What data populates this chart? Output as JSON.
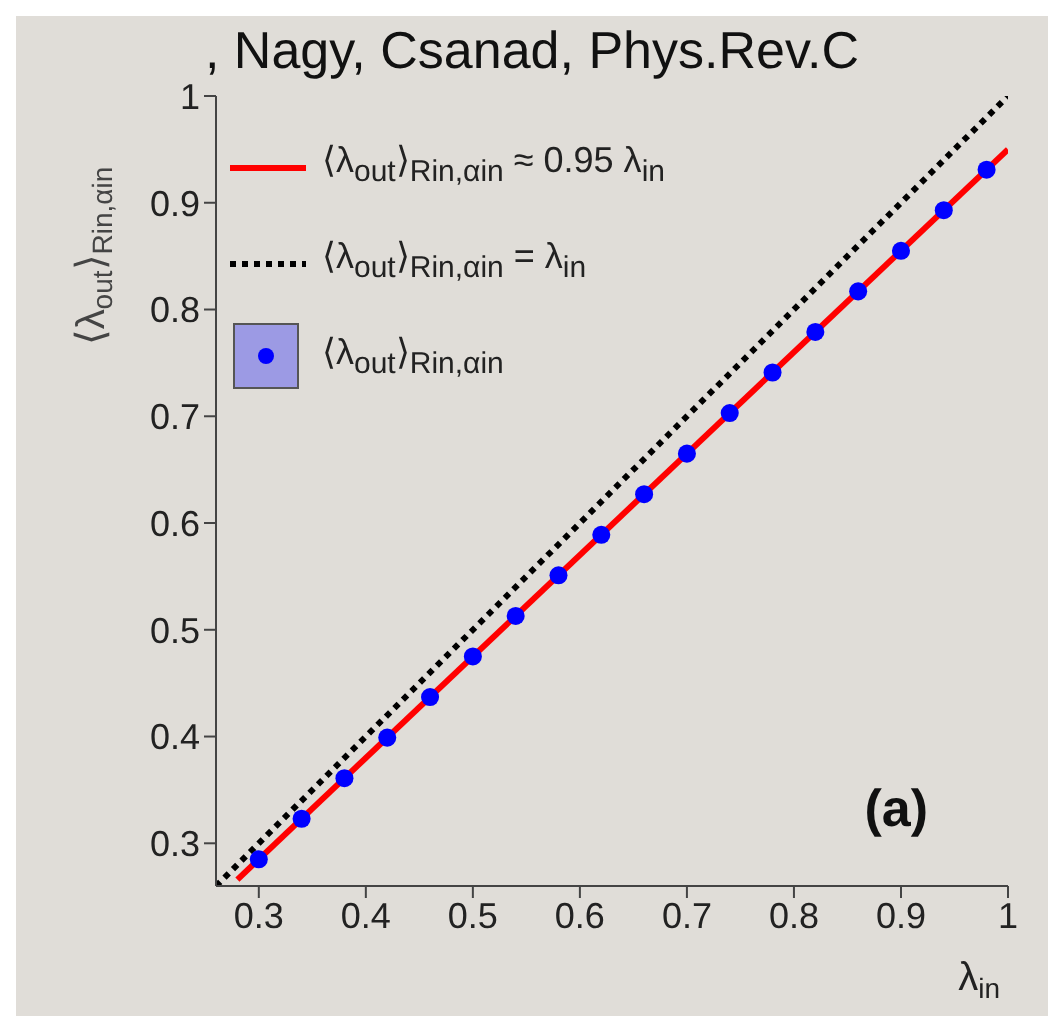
{
  "chart_data": {
    "type": "scatter",
    "title": ", Nagy, Csanad, Phys.Rev.C",
    "ylabel": "⟨λ$_{out}$⟩$_{Rin,αin}$",
    "xlabel": "λ$_{in}$",
    "annotations": [
      "(a)"
    ],
    "xlim": [
      0.26,
      1.0
    ],
    "xticks": [
      0.3,
      0.4,
      0.5,
      0.6,
      0.7,
      0.8,
      0.9,
      1
    ],
    "ylim": [
      0.26,
      1.0
    ],
    "yticks": [
      0.3,
      0.4,
      0.5,
      0.6,
      0.7,
      0.8,
      0.9,
      1
    ],
    "legend": "top left",
    "series": [
      {
        "name": "⟨λ$_{out}$⟩$_{Rin,αin}$ ≈ 0.95 λ$_{in}$",
        "type": "line",
        "color": "#ff0000",
        "line_style": "solid",
        "marker": "none",
        "x": [
          0.28,
          1.0
        ],
        "values": [
          0.266,
          0.95
        ]
      },
      {
        "name": "⟨λ$_{out}$⟩$_{Rin,αin}$ = λ$_{in}$",
        "type": "line",
        "color": "#000000",
        "line_style": "dotted",
        "marker": "none",
        "x": [
          0.26,
          1.0
        ],
        "values": [
          0.26,
          1.0
        ]
      },
      {
        "name": "⟨λ$_{out}$⟩$_{Rin,αin}$",
        "color": "#0000ff",
        "marker": "circle",
        "x": [
          0.3,
          0.34,
          0.38,
          0.42,
          0.46,
          0.5,
          0.54,
          0.58,
          0.62,
          0.66,
          0.7,
          0.74,
          0.78,
          0.82,
          0.86,
          0.9,
          0.94,
          0.98
        ],
        "values": [
          0.285,
          0.323,
          0.361,
          0.399,
          0.437,
          0.475,
          0.513,
          0.551,
          0.589,
          0.627,
          0.665,
          0.703,
          0.741,
          0.779,
          0.817,
          0.855,
          0.893,
          0.931
        ]
      }
    ]
  }
}
